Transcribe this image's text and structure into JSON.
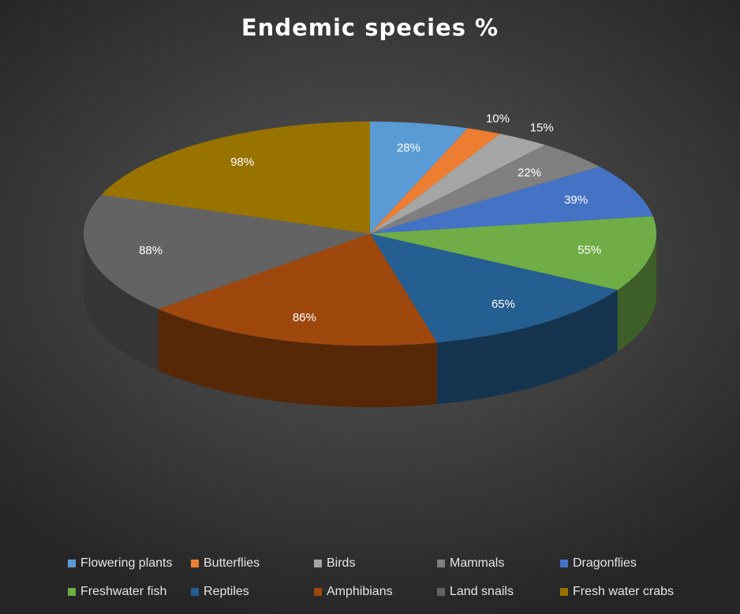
{
  "chart_data": {
    "type": "pie",
    "title": "Endemic species %",
    "categories": [
      "Flowering plants",
      "Butterflies",
      "Birds",
      "Mammals",
      "Dragonflies",
      "Freshwater fish",
      "Reptiles",
      "Amphibians",
      "Land snails",
      "Fresh water crabs"
    ],
    "values": [
      28,
      10,
      15,
      22,
      39,
      55,
      65,
      86,
      88,
      98
    ],
    "data_labels": [
      "28%",
      "10%",
      "15%",
      "22%",
      "39%",
      "55%",
      "65%",
      "86%",
      "88%",
      "98%"
    ],
    "colors": [
      "#5b9bd5",
      "#ed7d31",
      "#a5a5a5",
      "#7f7f7f",
      "#4472c4",
      "#70ad47",
      "#255e91",
      "#9e480e",
      "#636363",
      "#997300"
    ],
    "legend_position": "bottom",
    "style": "3d"
  }
}
